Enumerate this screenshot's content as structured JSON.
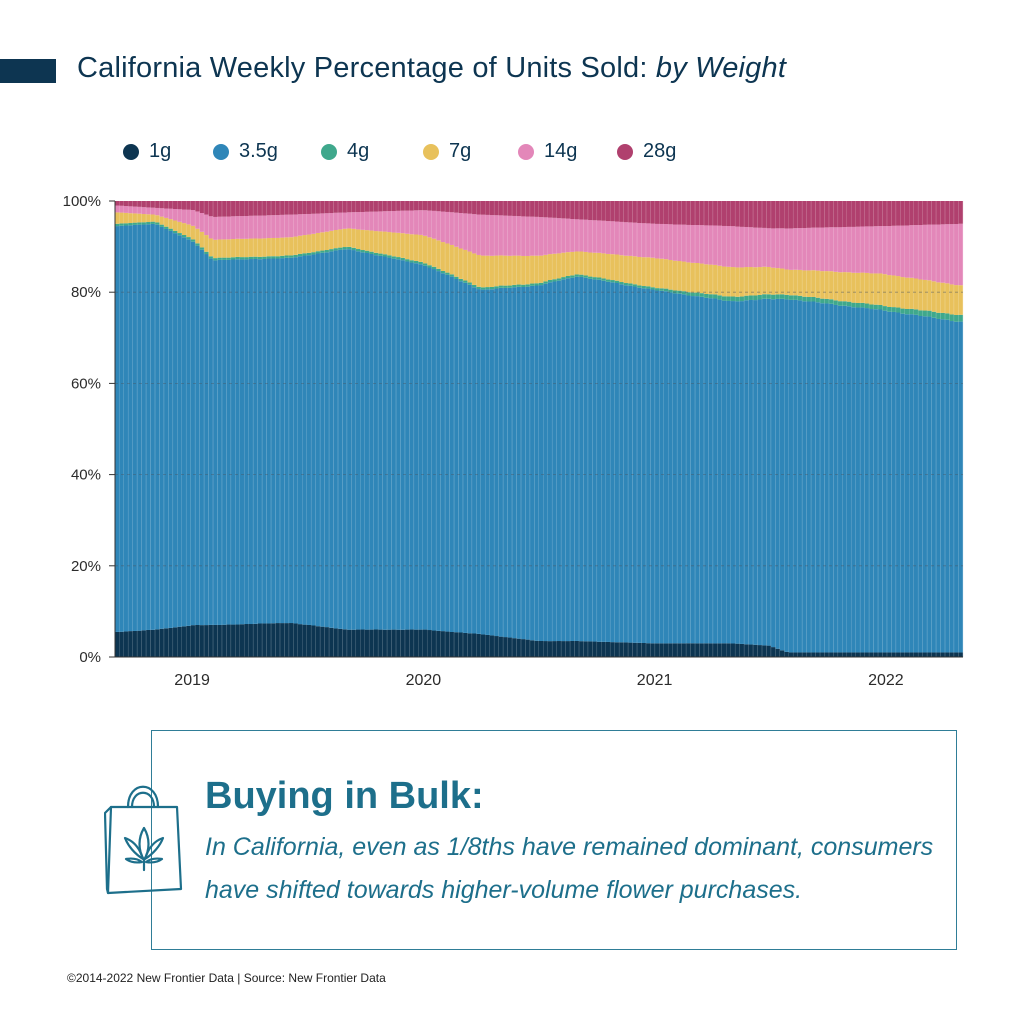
{
  "title": {
    "main": "California Weekly Percentage of Units Sold: ",
    "emphasis": "by Weight"
  },
  "colors": {
    "1g": "#0d3551",
    "3.5g": "#2f86b8",
    "4g": "#3fa88c",
    "7g": "#e8c15c",
    "14g": "#e387b9",
    "28g": "#b0406e",
    "accent": "#1d6f8b",
    "title": "#0d3551"
  },
  "chart_data": {
    "type": "bar",
    "stacked": true,
    "title": "California Weekly Percentage of Units Sold: by Weight",
    "xlabel": "",
    "ylabel": "",
    "ylim": [
      0,
      100
    ],
    "y_ticks": [
      "0%",
      "20%",
      "40%",
      "60%",
      "80%",
      "100%"
    ],
    "x_ticks": [
      "2019",
      "2020",
      "2021",
      "2022"
    ],
    "grid": true,
    "legend_position": "top",
    "x_range": [
      "2018-09",
      "2022-05"
    ],
    "series_names": [
      "1g",
      "3.5g",
      "4g",
      "7g",
      "14g",
      "28g"
    ],
    "keyframes": [
      {
        "date": "2018-09",
        "values": [
          5.5,
          89.0,
          0.5,
          2.5,
          1.5,
          1.0
        ]
      },
      {
        "date": "2018-11",
        "values": [
          6.0,
          89.0,
          0.5,
          1.5,
          1.5,
          1.5
        ]
      },
      {
        "date": "2019-01",
        "values": [
          7.0,
          84.0,
          0.5,
          3.0,
          3.5,
          2.0
        ]
      },
      {
        "date": "2019-02",
        "values": [
          7.0,
          80.0,
          0.5,
          4.0,
          5.0,
          3.5
        ]
      },
      {
        "date": "2019-06",
        "values": [
          7.5,
          80.0,
          0.5,
          4.0,
          5.0,
          3.0
        ]
      },
      {
        "date": "2019-09",
        "values": [
          6.0,
          83.5,
          0.5,
          4.0,
          3.5,
          2.5
        ]
      },
      {
        "date": "2020-01",
        "values": [
          6.0,
          80.0,
          0.5,
          6.0,
          5.5,
          2.0
        ]
      },
      {
        "date": "2020-04",
        "values": [
          5.0,
          75.5,
          0.5,
          7.0,
          9.0,
          3.0
        ]
      },
      {
        "date": "2020-07",
        "values": [
          3.5,
          78.0,
          0.5,
          6.0,
          8.5,
          3.5
        ]
      },
      {
        "date": "2020-09",
        "values": [
          3.5,
          80.0,
          0.5,
          5.0,
          7.0,
          4.0
        ]
      },
      {
        "date": "2021-01",
        "values": [
          3.0,
          77.5,
          0.5,
          6.5,
          7.5,
          5.0
        ]
      },
      {
        "date": "2021-05",
        "values": [
          3.0,
          75.0,
          1.0,
          6.5,
          9.0,
          5.5
        ]
      },
      {
        "date": "2021-07",
        "values": [
          2.5,
          76.0,
          1.0,
          6.0,
          8.5,
          6.0
        ]
      },
      {
        "date": "2021-08",
        "values": [
          1.0,
          77.5,
          1.0,
          5.5,
          9.0,
          6.0
        ]
      },
      {
        "date": "2022-01",
        "values": [
          1.0,
          75.0,
          1.0,
          7.0,
          10.5,
          5.5
        ]
      },
      {
        "date": "2022-05",
        "values": [
          1.0,
          72.5,
          1.5,
          6.5,
          13.5,
          5.0
        ]
      }
    ]
  },
  "callout": {
    "heading": "Buying in Bulk:",
    "body": "In California, even as 1/8ths have remained dominant, consumers have shifted towards higher-volume flower purchases."
  },
  "footer": "©2014-2022  New Frontier Data | Source: New Frontier Data"
}
